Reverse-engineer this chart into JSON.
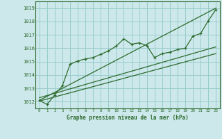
{
  "title": "Graphe pression niveau de la mer (hPa)",
  "bg_color": "#cce8ea",
  "grid_color": "#99cccc",
  "line_color": "#2d6a2d",
  "text_color": "#2d6a2d",
  "xlim": [
    -0.5,
    23.5
  ],
  "ylim": [
    1011.5,
    1019.5
  ],
  "yticks": [
    1012,
    1013,
    1014,
    1015,
    1016,
    1017,
    1018,
    1019
  ],
  "xticks": [
    0,
    1,
    2,
    3,
    4,
    5,
    6,
    7,
    8,
    9,
    10,
    11,
    12,
    13,
    14,
    15,
    16,
    17,
    18,
    19,
    20,
    21,
    22,
    23
  ],
  "series1_x": [
    0,
    1,
    2,
    3,
    4,
    5,
    6,
    7,
    8,
    9,
    10,
    11,
    12,
    13,
    14,
    15,
    16,
    17,
    18,
    19,
    20,
    21,
    22,
    23
  ],
  "series1_y": [
    1012.1,
    1011.8,
    1012.5,
    1013.2,
    1014.8,
    1015.05,
    1015.2,
    1015.3,
    1015.55,
    1015.8,
    1016.15,
    1016.7,
    1016.3,
    1016.4,
    1016.2,
    1015.3,
    1015.6,
    1015.7,
    1015.9,
    1016.0,
    1016.9,
    1017.1,
    1018.05,
    1018.9
  ],
  "series2_x": [
    0,
    23
  ],
  "series2_y": [
    1012.1,
    1019.0
  ],
  "series3_x": [
    0,
    23
  ],
  "series3_y": [
    1012.3,
    1016.1
  ],
  "series4_x": [
    0,
    23
  ],
  "series4_y": [
    1012.05,
    1015.6
  ]
}
